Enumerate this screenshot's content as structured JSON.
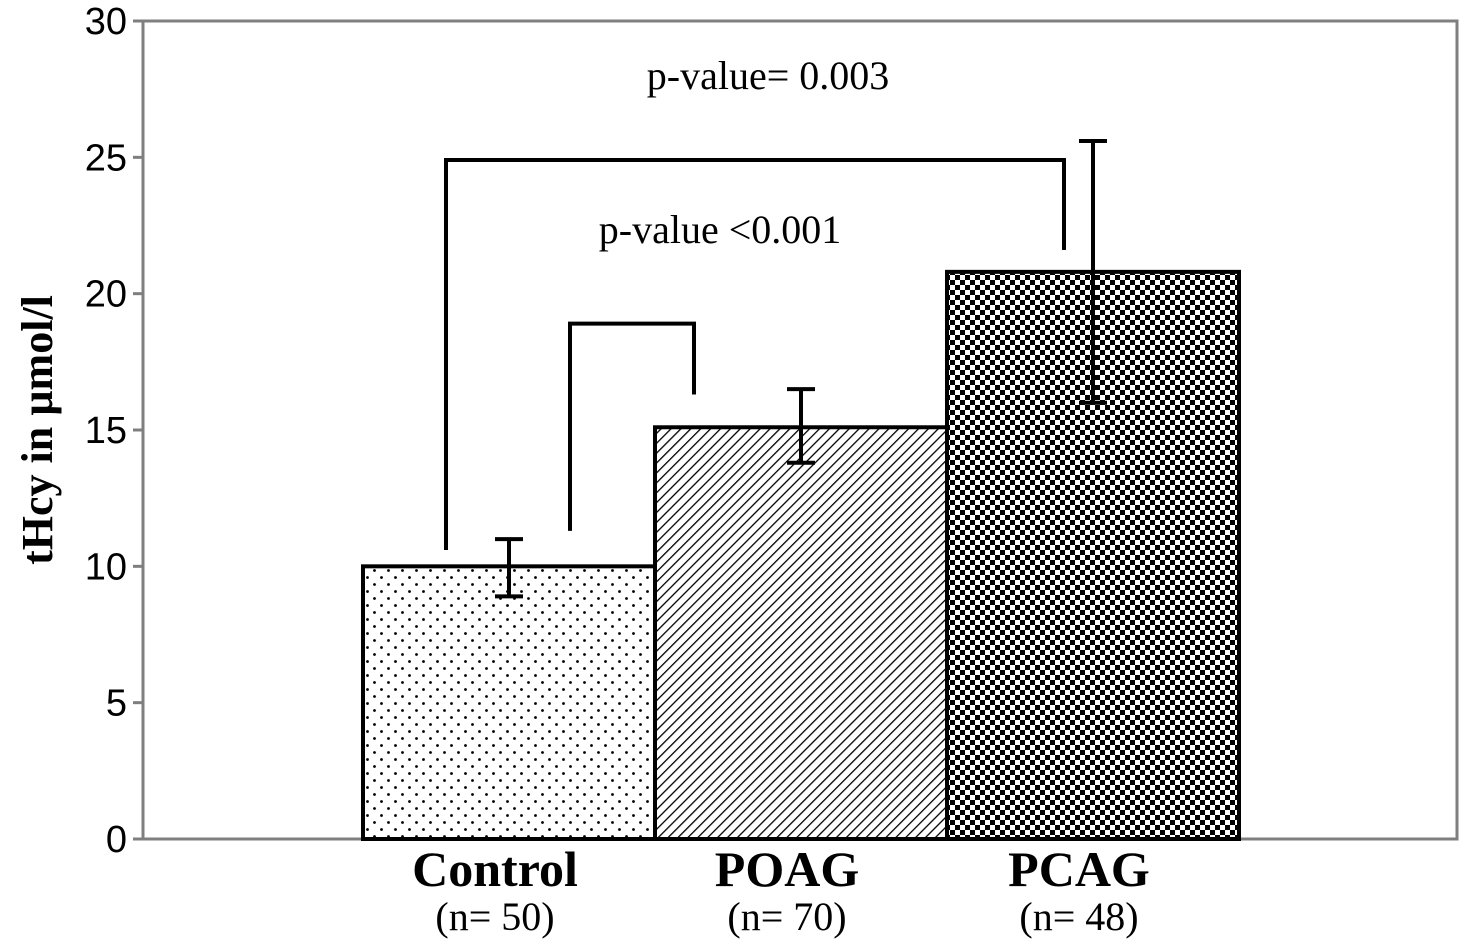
{
  "chart_data": {
    "type": "bar",
    "title": "",
    "xlabel": "",
    "ylabel": "tHcy in µmol/l",
    "ylim": [
      0,
      30
    ],
    "yticks": [
      "0",
      "5",
      "10",
      "15",
      "20",
      "25",
      "30"
    ],
    "categories": [
      "Control",
      "POAG",
      "PCAG"
    ],
    "category_sublabels": [
      "(n= 50)",
      "(n= 70)",
      "(n= 48)"
    ],
    "values": [
      10.0,
      15.1,
      20.8
    ],
    "error_low": [
      8.9,
      13.8,
      16.0
    ],
    "error_high": [
      11.0,
      16.5,
      25.6
    ],
    "fill_patterns": [
      "dots",
      "diagonal-hatch",
      "checkerboard"
    ],
    "grid": false,
    "legend": "none",
    "annotations": [
      {
        "text": "p-value <0.001",
        "from": "Control",
        "to": "POAG"
      },
      {
        "text": "p-value= 0.003",
        "from": "Control",
        "to": "PCAG"
      }
    ]
  }
}
